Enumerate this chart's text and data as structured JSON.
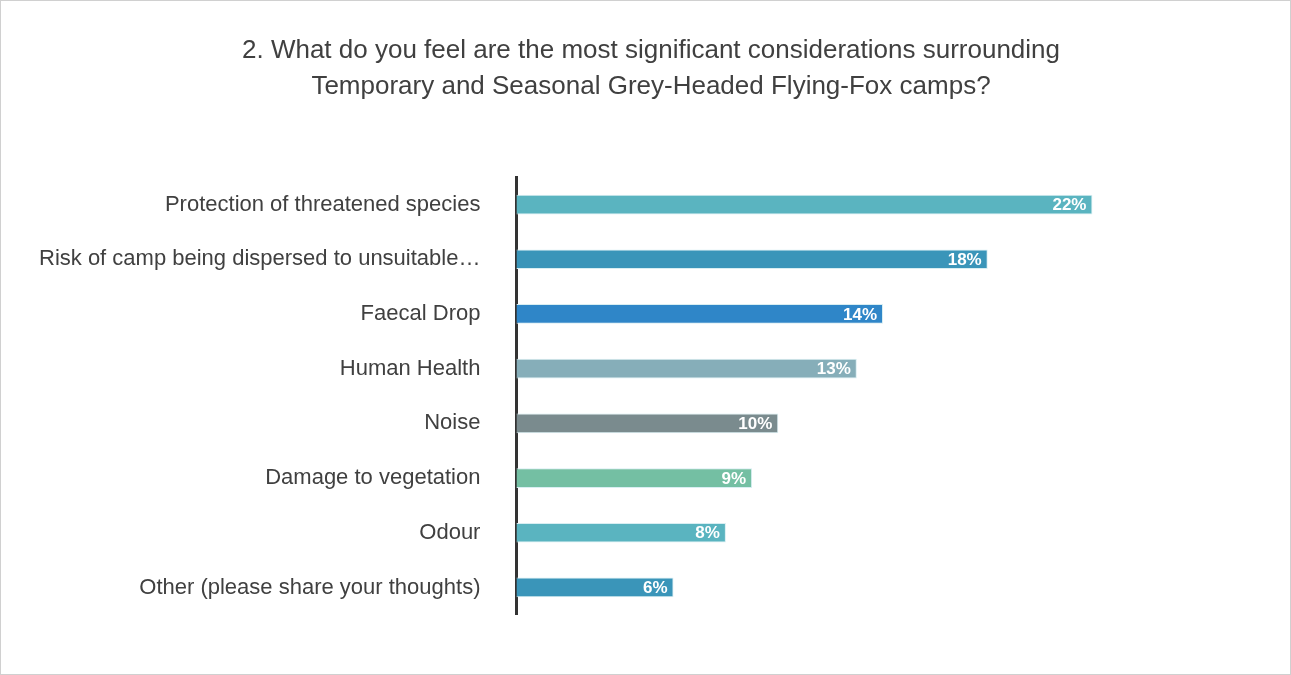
{
  "chart_data": {
    "type": "bar",
    "orientation": "horizontal",
    "title": "2. What do you feel are the most significant considerations surrounding Temporary and Seasonal Grey-Headed Flying-Fox camps?",
    "categories": [
      "Protection of threatened species",
      "Risk of camp being dispersed to unsuitable…",
      "Faecal Drop",
      "Human Health",
      "Noise",
      "Damage to vegetation",
      "Odour",
      "Other (please share your thoughts)"
    ],
    "values": [
      22,
      18,
      14,
      13,
      10,
      9,
      8,
      6
    ],
    "colors": [
      "#5ab4c0",
      "#3a95b9",
      "#2f86c8",
      "#86aeb9",
      "#7a8b8e",
      "#74bfa3",
      "#5ab4c0",
      "#3a95b9"
    ],
    "value_labels": [
      "22%",
      "18%",
      "14%",
      "13%",
      "10%",
      "9%",
      "8%",
      "6%"
    ],
    "grid": false,
    "legend": false,
    "tick_labels": "y"
  }
}
